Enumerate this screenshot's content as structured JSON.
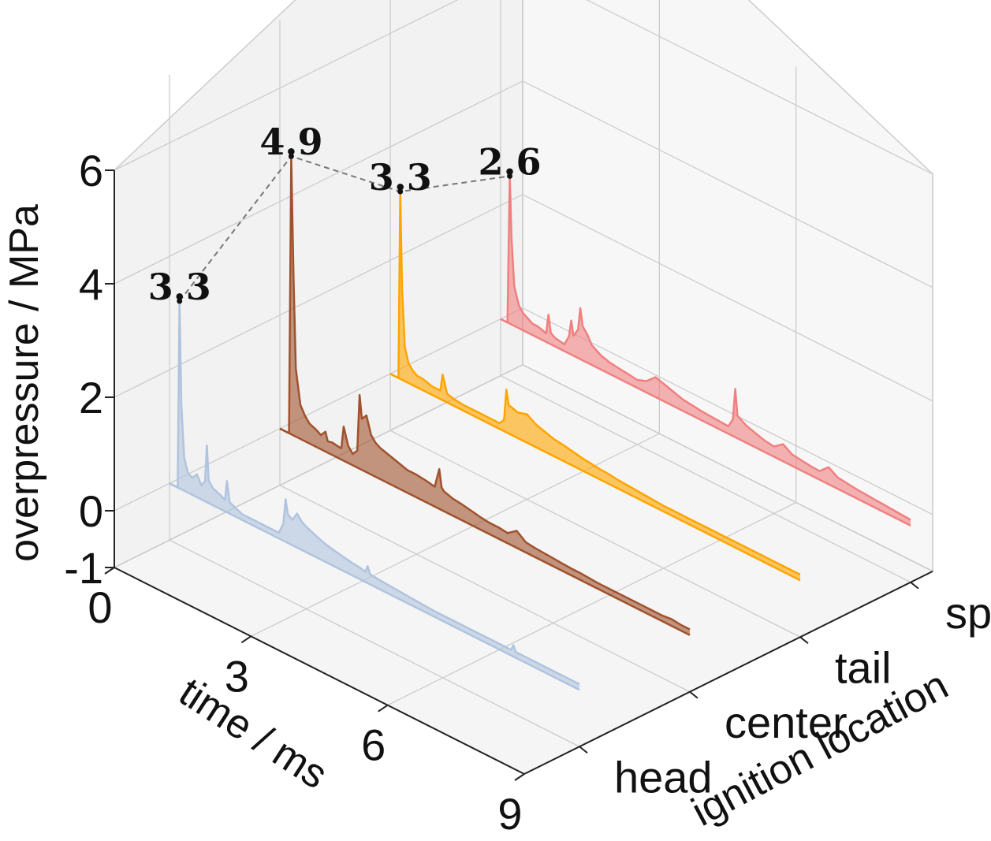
{
  "chart_data": {
    "type": "3d-waterfall-line",
    "title": "",
    "xlabel": "time / ms",
    "ylabel": "ignition location",
    "zlabel": "overpressure / MPa",
    "xlim": [
      0,
      9
    ],
    "zlim": [
      -1,
      6
    ],
    "x_ticks": [
      "0",
      "3",
      "6",
      "9"
    ],
    "z_ticks": [
      "6",
      "4",
      "2",
      "0",
      "-1"
    ],
    "categories": [
      "head",
      "center",
      "tail",
      "sphere"
    ],
    "grid": true,
    "colors": {
      "head": "#b0c4de",
      "center": "#a0522d",
      "tail": "#ffa500",
      "sphere": "#f08080",
      "pane_back": "#f2f2f2",
      "pane_side": "#f7f7f7",
      "grid": "#cccccc",
      "peak_connector": "#777777"
    },
    "series": [
      {
        "name": "head",
        "peak_label": "3.3",
        "peak_value": 3.3,
        "peak_time": 0.22,
        "x": [
          0,
          0.18,
          0.22,
          0.26,
          0.32,
          0.4,
          0.5,
          0.6,
          0.7,
          0.78,
          0.82,
          0.86,
          0.95,
          1.1,
          1.22,
          1.26,
          1.32,
          1.45,
          1.6,
          1.8,
          2.0,
          2.2,
          2.4,
          2.5,
          2.55,
          2.6,
          2.7,
          2.8,
          2.9,
          3.0,
          3.2,
          3.4,
          3.6,
          3.8,
          4.0,
          4.2,
          4.3,
          4.35,
          4.4,
          4.6,
          4.8,
          5.0,
          5.2,
          5.4,
          5.6,
          5.8,
          6.0,
          6.2,
          6.4,
          6.6,
          6.8,
          7.0,
          7.2,
          7.4,
          7.5,
          7.55,
          7.6,
          7.8,
          8.0,
          8.2,
          8.4,
          8.6,
          8.8,
          9.0
        ],
        "values": [
          0,
          0,
          3.3,
          1.5,
          0.6,
          0.35,
          0.3,
          0.4,
          0.25,
          0.35,
          1.0,
          0.4,
          0.3,
          0.25,
          0.2,
          0.55,
          0.2,
          0.15,
          0.1,
          0.1,
          0.1,
          0.1,
          0.1,
          0.3,
          0.75,
          0.5,
          0.45,
          0.6,
          0.5,
          0.45,
          0.38,
          0.32,
          0.28,
          0.25,
          0.22,
          0.2,
          0.18,
          0.3,
          0.18,
          0.16,
          0.15,
          0.14,
          0.13,
          0.12,
          0.11,
          0.1,
          0.1,
          0.1,
          0.1,
          0.1,
          0.1,
          0.1,
          0.1,
          0.1,
          0.1,
          0.2,
          0.1,
          0.1,
          0.1,
          0.1,
          0.1,
          0.1,
          0.1,
          0.1
        ]
      },
      {
        "name": "center",
        "peak_label": "4.9",
        "peak_value": 4.9,
        "peak_time": 0.25,
        "x": [
          0,
          0.2,
          0.25,
          0.3,
          0.35,
          0.45,
          0.55,
          0.65,
          0.8,
          0.9,
          1.0,
          1.05,
          1.15,
          1.3,
          1.35,
          1.4,
          1.5,
          1.6,
          1.7,
          1.75,
          1.8,
          1.9,
          2.0,
          2.1,
          2.2,
          2.4,
          2.6,
          2.8,
          3.0,
          3.2,
          3.4,
          3.5,
          3.55,
          3.6,
          3.8,
          4.0,
          4.2,
          4.4,
          4.6,
          4.8,
          5.0,
          5.2,
          5.4,
          5.6,
          5.8,
          6.0,
          6.2,
          6.4,
          6.6,
          6.8,
          7.0,
          7.2,
          7.4,
          7.6,
          7.8,
          8.0,
          8.2,
          8.4,
          8.6,
          8.8,
          9.0
        ],
        "values": [
          0,
          0,
          4.9,
          2.8,
          1.2,
          0.6,
          0.45,
          0.35,
          0.3,
          0.25,
          0.35,
          0.2,
          0.22,
          0.2,
          0.2,
          0.6,
          0.3,
          0.2,
          0.3,
          1.3,
          0.9,
          1.0,
          0.7,
          0.6,
          0.55,
          0.5,
          0.45,
          0.4,
          0.4,
          0.38,
          0.35,
          0.7,
          0.4,
          0.35,
          0.3,
          0.28,
          0.25,
          0.22,
          0.2,
          0.2,
          0.18,
          0.3,
          0.18,
          0.16,
          0.15,
          0.14,
          0.13,
          0.12,
          0.12,
          0.11,
          0.1,
          0.1,
          0.1,
          0.1,
          0.1,
          0.1,
          0.1,
          0.1,
          0.12,
          0.1,
          0.1
        ]
      },
      {
        "name": "tail",
        "peak_label": "3.3",
        "peak_value": 3.3,
        "peak_time": 0.22,
        "x": [
          0,
          0.18,
          0.22,
          0.26,
          0.32,
          0.4,
          0.5,
          0.6,
          0.7,
          0.8,
          0.9,
          1.0,
          1.1,
          1.15,
          1.25,
          1.4,
          1.6,
          1.8,
          2.0,
          2.2,
          2.4,
          2.5,
          2.55,
          2.6,
          2.8,
          3.0,
          3.2,
          3.4,
          3.6,
          3.8,
          4.0,
          4.2,
          4.4,
          4.6,
          4.8,
          5.0,
          5.2,
          5.4,
          5.6,
          5.8,
          6.0,
          6.2,
          6.4,
          6.6,
          6.8,
          7.0,
          7.2,
          7.4,
          7.6,
          7.8,
          8.0,
          8.2,
          8.4,
          8.6,
          8.8,
          9.0
        ],
        "values": [
          0,
          0,
          3.3,
          1.6,
          0.6,
          0.35,
          0.25,
          0.2,
          0.2,
          0.18,
          0.15,
          0.15,
          0.15,
          0.45,
          0.15,
          0.12,
          0.1,
          0.1,
          0.1,
          0.1,
          0.1,
          0.2,
          0.75,
          0.5,
          0.45,
          0.5,
          0.4,
          0.35,
          0.3,
          0.28,
          0.25,
          0.22,
          0.2,
          0.18,
          0.17,
          0.15,
          0.14,
          0.13,
          0.12,
          0.11,
          0.1,
          0.1,
          0.1,
          0.1,
          0.1,
          0.1,
          0.1,
          0.1,
          0.1,
          0.1,
          0.1,
          0.1,
          0.1,
          0.1,
          0.1,
          0.1
        ]
      },
      {
        "name": "sphere",
        "peak_label": "2.6",
        "peak_value": 2.6,
        "peak_time": 0.2,
        "x": [
          0,
          0.15,
          0.2,
          0.24,
          0.3,
          0.4,
          0.5,
          0.6,
          0.7,
          0.8,
          0.9,
          1.0,
          1.05,
          1.1,
          1.2,
          1.4,
          1.5,
          1.55,
          1.6,
          1.7,
          1.75,
          1.8,
          1.9,
          2.0,
          2.2,
          2.4,
          2.6,
          2.8,
          3.0,
          3.2,
          3.4,
          3.6,
          3.8,
          4.0,
          4.2,
          4.4,
          4.6,
          4.8,
          5.0,
          5.1,
          5.15,
          5.2,
          5.4,
          5.6,
          5.8,
          6.0,
          6.2,
          6.4,
          6.6,
          6.8,
          7.0,
          7.2,
          7.4,
          7.6,
          7.8,
          8.0,
          8.2,
          8.4,
          8.6,
          8.8,
          9.0
        ],
        "values": [
          0,
          0,
          2.6,
          1.5,
          0.7,
          0.4,
          0.3,
          0.25,
          0.2,
          0.2,
          0.18,
          0.15,
          0.5,
          0.2,
          0.15,
          0.12,
          0.3,
          0.6,
          0.35,
          0.5,
          0.9,
          0.6,
          0.5,
          0.35,
          0.25,
          0.2,
          0.18,
          0.16,
          0.14,
          0.2,
          0.35,
          0.3,
          0.25,
          0.2,
          0.18,
          0.16,
          0.15,
          0.14,
          0.13,
          0.3,
          0.85,
          0.4,
          0.3,
          0.25,
          0.2,
          0.18,
          0.3,
          0.2,
          0.18,
          0.16,
          0.15,
          0.3,
          0.2,
          0.18,
          0.16,
          0.15,
          0.14,
          0.13,
          0.12,
          0.11,
          0.1
        ]
      }
    ]
  }
}
